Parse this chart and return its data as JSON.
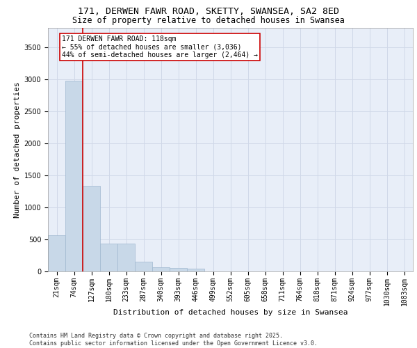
{
  "title_line1": "171, DERWEN FAWR ROAD, SKETTY, SWANSEA, SA2 8ED",
  "title_line2": "Size of property relative to detached houses in Swansea",
  "xlabel": "Distribution of detached houses by size in Swansea",
  "ylabel": "Number of detached properties",
  "footer_line1": "Contains HM Land Registry data © Crown copyright and database right 2025.",
  "footer_line2": "Contains public sector information licensed under the Open Government Licence v3.0.",
  "categories": [
    "21sqm",
    "74sqm",
    "127sqm",
    "180sqm",
    "233sqm",
    "287sqm",
    "340sqm",
    "393sqm",
    "446sqm",
    "499sqm",
    "552sqm",
    "605sqm",
    "658sqm",
    "711sqm",
    "764sqm",
    "818sqm",
    "871sqm",
    "924sqm",
    "977sqm",
    "1030sqm",
    "1083sqm"
  ],
  "values": [
    570,
    2970,
    1340,
    430,
    430,
    155,
    70,
    50,
    40,
    0,
    0,
    0,
    0,
    0,
    0,
    0,
    0,
    0,
    0,
    0,
    0
  ],
  "bar_color": "#c8d8e8",
  "bar_edge_color": "#a0b8d0",
  "grid_color": "#d0d8e8",
  "background_color": "#e8eef8",
  "vline_color": "#cc0000",
  "annotation_text": "171 DERWEN FAWR ROAD: 118sqm\n← 55% of detached houses are smaller (3,036)\n44% of semi-detached houses are larger (2,464) →",
  "annotation_box_color": "#cc0000",
  "ylim": [
    0,
    3800
  ],
  "yticks": [
    0,
    500,
    1000,
    1500,
    2000,
    2500,
    3000,
    3500
  ],
  "title_fontsize": 9.5,
  "subtitle_fontsize": 8.5,
  "axis_label_fontsize": 8,
  "tick_fontsize": 7,
  "annotation_fontsize": 7,
  "footer_fontsize": 6
}
